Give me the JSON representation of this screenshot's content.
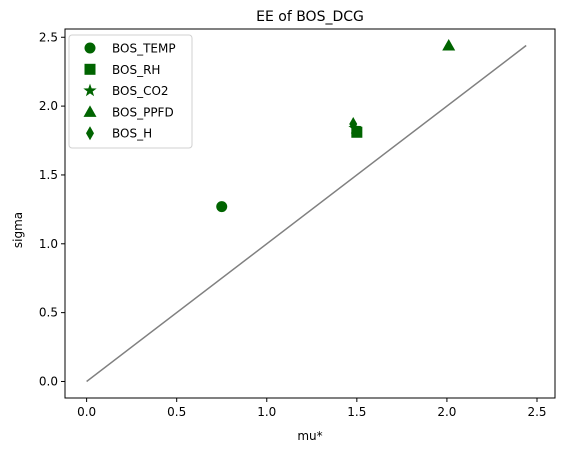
{
  "chart_data": {
    "type": "scatter",
    "title": "EE of BOS_DCG",
    "xlabel": "mu*",
    "ylabel": "sigma",
    "xlim": [
      -0.12,
      2.6
    ],
    "ylim": [
      -0.12,
      2.56
    ],
    "xticks": [
      "0.0",
      "0.5",
      "1.0",
      "1.5",
      "2.0",
      "2.5"
    ],
    "yticks": [
      "0.0",
      "0.5",
      "1.0",
      "1.5",
      "2.0",
      "2.5"
    ],
    "grid": false,
    "legend_position": "top-left",
    "marker_color": "#006400",
    "reference_line": {
      "x": [
        0,
        2.44
      ],
      "y": [
        0,
        2.44
      ],
      "color": "#808080"
    },
    "series": [
      {
        "name": "BOS_TEMP",
        "marker": "circle",
        "x": [
          0.75
        ],
        "y": [
          1.27
        ]
      },
      {
        "name": "BOS_RH",
        "marker": "square",
        "x": [
          1.5
        ],
        "y": [
          1.81
        ]
      },
      {
        "name": "BOS_CO2",
        "marker": "star",
        "x": [
          1.49
        ],
        "y": [
          1.84
        ]
      },
      {
        "name": "BOS_PPFD",
        "marker": "triangle",
        "x": [
          2.01
        ],
        "y": [
          2.44
        ]
      },
      {
        "name": "BOS_H",
        "marker": "diamond",
        "x": [
          1.48
        ],
        "y": [
          1.87
        ]
      }
    ]
  }
}
